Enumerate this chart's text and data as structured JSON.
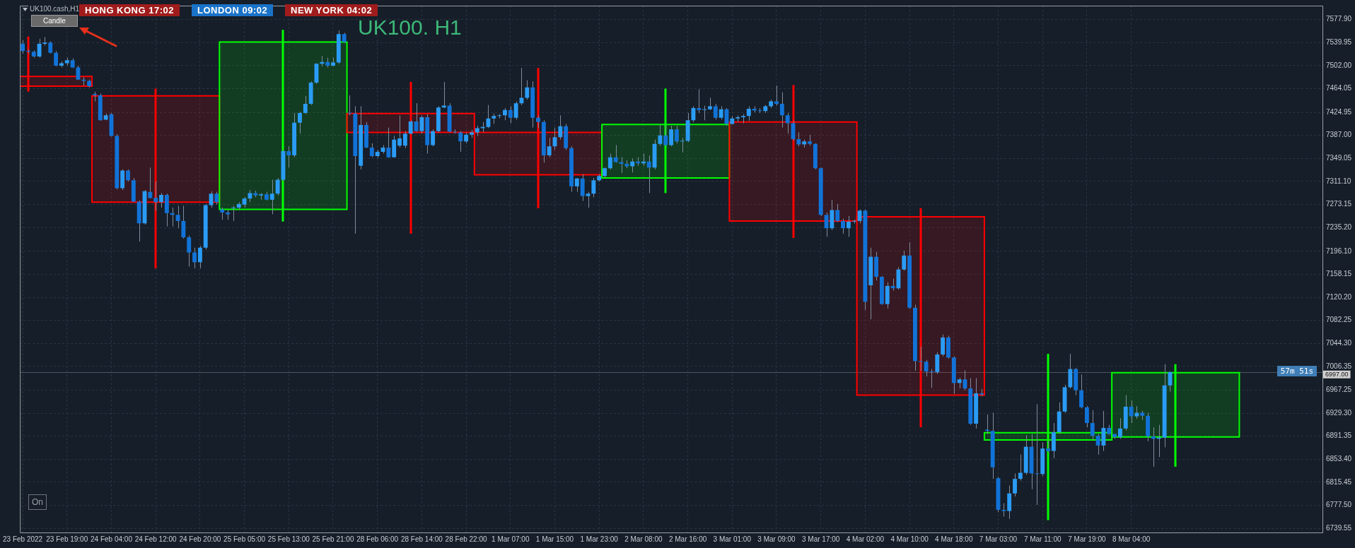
{
  "chart_data": {
    "type": "candlestick",
    "title": "UK100. H1",
    "categories": [
      "23 Feb 2022",
      null,
      null,
      null,
      null,
      null,
      null,
      null,
      "23 Feb 19:00",
      null,
      null,
      null,
      null,
      null,
      null,
      null,
      "24 Feb 04:00",
      null,
      null,
      null,
      null,
      null,
      null,
      null,
      "24 Feb 12:00",
      null,
      null,
      null,
      null,
      null,
      null,
      null,
      "24 Feb 20:00",
      null,
      null,
      null,
      null,
      null,
      null,
      null,
      "25 Feb 05:00",
      null,
      null,
      null,
      null,
      null,
      null,
      null,
      "25 Feb 13:00",
      null,
      null,
      null,
      null,
      null,
      null,
      null,
      "25 Feb 21:00",
      null,
      null,
      null,
      null,
      null,
      null,
      null,
      "28 Feb 06:00",
      null,
      null,
      null,
      null,
      null,
      null,
      null,
      "28 Feb 14:00",
      null,
      null,
      null,
      null,
      null,
      null,
      null,
      "28 Feb 22:00",
      null,
      null,
      null,
      null,
      null,
      null,
      null,
      "1 Mar 07:00",
      null,
      null,
      null,
      null,
      null,
      null,
      null,
      "1 Mar 15:00",
      null,
      null,
      null,
      null,
      null,
      null,
      null,
      "1 Mar 23:00",
      null,
      null,
      null,
      null,
      null,
      null,
      null,
      "2 Mar 08:00",
      null,
      null,
      null,
      null,
      null,
      null,
      null,
      "2 Mar 16:00",
      null,
      null,
      null,
      null,
      null,
      null,
      null,
      "3 Mar 01:00",
      null,
      null,
      null,
      null,
      null,
      null,
      null,
      "3 Mar 09:00",
      null,
      null,
      null,
      null,
      null,
      null,
      null,
      "3 Mar 17:00",
      null,
      null,
      null,
      null,
      null,
      null,
      null,
      "4 Mar 02:00",
      null,
      null,
      null,
      null,
      null,
      null,
      null,
      "4 Mar 10:00",
      null,
      null,
      null,
      null,
      null,
      null,
      null,
      "4 Mar 18:00",
      null,
      null,
      null,
      null,
      null,
      null,
      null,
      "7 Mar 03:00",
      null,
      null,
      null,
      null,
      null,
      null,
      null,
      "7 Mar 11:00",
      null,
      null,
      null,
      null,
      null,
      null,
      null,
      "7 Mar 19:00",
      null,
      null,
      null,
      null,
      null,
      null,
      null,
      "8 Mar 04:00",
      null,
      null,
      null,
      null,
      null,
      null,
      null,
      null,
      null,
      null,
      null,
      null,
      null,
      null,
      null,
      null,
      null,
      null,
      null,
      null,
      null,
      null,
      null,
      null,
      null,
      null,
      null,
      null,
      null,
      null,
      null,
      null,
      null,
      null
    ],
    "series": [
      {
        "color": "#7f8c9c",
        "colors": [
          "#1173d8",
          "#1173d8",
          "#1173d8",
          "#2a9cf5",
          "#2a9cf5",
          "#1173d8",
          "#1173d8",
          "#2a9cf5",
          "#2a9cf5",
          "#1173d8",
          "#1173d8",
          "#1173d8",
          "#1173d8",
          "#1173d8",
          "#1173d8",
          "#2a9cf5",
          "#1173d8",
          "#1173d8",
          "#2a9cf5",
          "#1173d8",
          "#1173d8",
          "#1173d8",
          "#2a9cf5",
          "#1173d8",
          "#1173d8",
          "#2a9cf5",
          "#1173d8",
          "#1173d8",
          "#1173d8",
          "#1173d8",
          "#1173d8",
          "#1173d8",
          "#2a9cf5",
          "#2a9cf5",
          "#2a9cf5",
          "#1173d8",
          "#1173d8",
          "#1173d8",
          "#2a9cf5",
          "#2a9cf5",
          "#2a9cf5",
          "#2a9cf5",
          "#1173d8",
          "#2a9cf5",
          "#1173d8",
          "#2a9cf5",
          "#2a9cf5",
          "#2a9cf5",
          "#1173d8",
          "#2a9cf5",
          "#2a9cf5",
          "#2a9cf5",
          "#2a9cf5",
          "#2a9cf5",
          "#2a9cf5",
          "#1173d8",
          "#2a9cf5",
          "#2a9cf5",
          "#1173d8",
          "#1173d8",
          "#1173d8",
          "#2a9cf5",
          "#1173d8",
          "#1173d8",
          "#2a9cf5",
          "#2a9cf5",
          "#1173d8",
          "#2a9cf5",
          "#2a9cf5",
          "#2a9cf5",
          "#2a9cf5",
          "#1173d8",
          "#2a9cf5",
          "#1173d8",
          "#2a9cf5",
          "#2a9cf5",
          "#2a9cf5",
          "#1173d8",
          "#1173d8",
          "#1173d8",
          "#2a9cf5",
          "#2a9cf5",
          "#2a9cf5",
          "#2a9cf5",
          "#2a9cf5",
          "#2a9cf5",
          "#2a9cf5",
          "#2a9cf5",
          "#1173d8",
          "#2a9cf5",
          "#2a9cf5",
          "#2a9cf5",
          "#1173d8",
          "#1173d8",
          "#1173d8",
          "#2a9cf5",
          "#2a9cf5",
          "#2a9cf5",
          "#1173d8",
          "#1173d8",
          "#2a9cf5",
          "#1173d8",
          "#2a9cf5",
          "#2a9cf5",
          "#2a9cf5",
          "#2a9cf5",
          "#2a9cf5",
          "#1173d8",
          "#1173d8",
          "#1173d8",
          "#2a9cf5",
          "#1173d8",
          "#2a9cf5",
          "#1173d8",
          "#2a9cf5",
          "#2a9cf5",
          "#1173d8",
          "#2a9cf5",
          "#1173d8",
          "#2a9cf5",
          "#2a9cf5",
          "#2a9cf5",
          "#1173d8",
          "#2a9cf5",
          "#2a9cf5",
          "#1173d8",
          "#2a9cf5",
          "#1173d8",
          "#2a9cf5",
          "#2a9cf5",
          "#2a9cf5",
          "#2a9cf5",
          "#1173d8",
          "#1173d8",
          "#2a9cf5",
          "#2a9cf5",
          "#1173d8",
          "#1173d8",
          "#1173d8",
          "#1173d8",
          "#1173d8",
          "#2a9cf5",
          "#1173d8",
          "#1173d8",
          "#1173d8",
          "#1173d8",
          "#2a9cf5",
          "#1173d8",
          "#1173d8",
          "#2a9cf5",
          "#2a9cf5",
          "#2a9cf5",
          "#1173d8",
          "#2a9cf5",
          "#1173d8",
          "#1173d8",
          "#2a9cf5",
          "#1173d8",
          "#2a9cf5",
          "#2a9cf5",
          "#1173d8",
          "#1173d8",
          "#1173d8",
          "#1173d8",
          "#1173d8",
          "#2a9cf5",
          "#2a9cf5",
          "#1173d8",
          "#1173d8",
          "#2a9cf5",
          "#1173d8",
          "#1173d8",
          "#2a9cf5",
          "#1173d8",
          "#1173d8",
          "#1173d8",
          "#1173d8",
          "#1173d8",
          "#2a9cf5",
          "#2a9cf5",
          "#2a9cf5",
          "#2a9cf5",
          "#1173d8",
          "#1173d8",
          "#2a9cf5",
          "#1173d8",
          "#2a9cf5",
          "#2a9cf5",
          "#2a9cf5",
          "#2a9cf5",
          "#1173d8",
          "#1173d8",
          "#1173d8",
          "#1173d8",
          "#1173d8",
          "#2a9cf5",
          "#1173d8",
          "#1173d8",
          "#2a9cf5",
          "#2a9cf5",
          "#1173d8",
          "#2a9cf5",
          "#1173d8",
          "#1173d8",
          "#1173d8",
          "#2a9cf5",
          "#2a9cf5",
          "#2a9cf5",
          null,
          null,
          null,
          null,
          null,
          null,
          null,
          null,
          null,
          null,
          null,
          null,
          null,
          null,
          null,
          null,
          null,
          null,
          null,
          null,
          null,
          null,
          null,
          null,
          null,
          null,
          null
        ],
        "ohlc": [
          [
            7538,
            7544,
            7522,
            7526
          ],
          [
            7526,
            7529,
            7522,
            7525
          ],
          [
            7525,
            7527,
            7515,
            7517
          ],
          [
            7517,
            7546,
            7515,
            7538
          ],
          [
            7538,
            7549,
            7535,
            7540
          ],
          [
            7540,
            7542,
            7522,
            7523
          ],
          [
            7523,
            7526,
            7501,
            7502
          ],
          [
            7502,
            7509,
            7499,
            7506
          ],
          [
            7506,
            7515,
            7502,
            7511
          ],
          [
            7511,
            7514,
            7498,
            7499
          ],
          [
            7499,
            7502,
            7478,
            7479
          ],
          [
            7479,
            7483,
            7469,
            7477
          ],
          [
            7477,
            7479,
            7466,
            7468
          ],
          [
            7455,
            7459,
            7443,
            7453
          ],
          [
            7453,
            7456,
            7411,
            7412
          ],
          [
            7413,
            7423,
            7412,
            7420
          ],
          [
            7422,
            7424,
            7385,
            7386
          ],
          [
            7386,
            7389,
            7298,
            7300
          ],
          [
            7300,
            7331,
            7297,
            7329
          ],
          [
            7329,
            7331,
            7311,
            7313
          ],
          [
            7313,
            7317,
            7277,
            7278
          ],
          [
            7278,
            7280,
            7212,
            7242
          ],
          [
            7242,
            7297,
            7240,
            7295
          ],
          [
            7294,
            7334,
            7283,
            7284
          ],
          [
            7284,
            7311,
            7263,
            7277
          ],
          [
            7277,
            7292,
            7268,
            7289
          ],
          [
            7289,
            7291,
            7237,
            7259
          ],
          [
            7259,
            7268,
            7237,
            7256
          ],
          [
            7256,
            7271,
            7234,
            7246
          ],
          [
            7246,
            7271,
            7217,
            7219
          ],
          [
            7219,
            7222,
            7171,
            7194
          ],
          [
            7194,
            7202,
            7168,
            7178
          ],
          [
            7178,
            7205,
            7168,
            7202
          ],
          [
            7202,
            7274,
            7199,
            7272
          ],
          [
            7272,
            7295,
            7268,
            7291
          ],
          [
            7291,
            7294,
            7273,
            7277
          ],
          [
            7265,
            7268,
            7248,
            7260
          ],
          [
            7260,
            7264,
            7248,
            7257
          ],
          [
            7267,
            7271,
            7246,
            7268
          ],
          [
            7268,
            7277,
            7265,
            7274
          ],
          [
            7273,
            7285,
            7268,
            7283
          ],
          [
            7283,
            7297,
            7277,
            7292
          ],
          [
            7292,
            7296,
            7285,
            7288
          ],
          [
            7288,
            7292,
            7281,
            7290
          ],
          [
            7290,
            7294,
            7280,
            7281
          ],
          [
            7281,
            7314,
            7257,
            7291
          ],
          [
            7291,
            7317,
            7288,
            7314
          ],
          [
            7314,
            7363,
            7311,
            7361
          ],
          [
            7361,
            7369,
            7334,
            7354
          ],
          [
            7354,
            7424,
            7351,
            7408
          ],
          [
            7408,
            7426,
            7390,
            7424
          ],
          [
            7424,
            7452,
            7422,
            7439
          ],
          [
            7439,
            7476,
            7437,
            7474
          ],
          [
            7474,
            7506,
            7472,
            7505
          ],
          [
            7505,
            7518,
            7501,
            7508
          ],
          [
            7508,
            7515,
            7499,
            7502
          ],
          [
            7502,
            7515,
            7501,
            7507
          ],
          [
            7507,
            7560,
            7505,
            7554
          ],
          [
            7554,
            7556,
            7539,
            7541
          ],
          [
            7424,
            7453,
            7420,
            7423
          ],
          [
            7423,
            7435,
            7225,
            7353
          ],
          [
            7337,
            7435,
            7331,
            7404
          ],
          [
            7404,
            7409,
            7366,
            7367
          ],
          [
            7367,
            7374,
            7351,
            7353
          ],
          [
            7353,
            7363,
            7350,
            7360
          ],
          [
            7360,
            7371,
            7357,
            7367
          ],
          [
            7367,
            7400,
            7350,
            7351
          ],
          [
            7351,
            7386,
            7351,
            7380
          ],
          [
            7370,
            7420,
            7367,
            7382
          ],
          [
            7370,
            7394,
            7366,
            7390
          ],
          [
            7390,
            7412,
            7389,
            7410
          ],
          [
            7410,
            7440,
            7393,
            7394
          ],
          [
            7394,
            7420,
            7390,
            7417
          ],
          [
            7417,
            7422,
            7357,
            7371
          ],
          [
            7371,
            7397,
            7369,
            7394
          ],
          [
            7394,
            7435,
            7392,
            7433
          ],
          [
            7433,
            7475,
            7432,
            7436
          ],
          [
            7436,
            7440,
            7392,
            7393
          ],
          [
            7393,
            7397,
            7390,
            7392
          ],
          [
            7392,
            7394,
            7360,
            7377
          ],
          [
            7377,
            7392,
            7374,
            7388
          ],
          [
            7388,
            7396,
            7383,
            7392
          ],
          [
            7392,
            7403,
            7386,
            7399
          ],
          [
            7399,
            7409,
            7392,
            7401
          ],
          [
            7401,
            7437,
            7399,
            7415
          ],
          [
            7415,
            7423,
            7406,
            7419
          ],
          [
            7419,
            7422,
            7415,
            7420
          ],
          [
            7420,
            7432,
            7412,
            7429
          ],
          [
            7429,
            7435,
            7407,
            7416
          ],
          [
            7416,
            7443,
            7413,
            7440
          ],
          [
            7440,
            7498,
            7437,
            7449
          ],
          [
            7449,
            7478,
            7446,
            7466
          ],
          [
            7466,
            7476,
            7400,
            7416
          ],
          [
            7416,
            7420,
            7399,
            7409
          ],
          [
            7409,
            7412,
            7342,
            7354
          ],
          [
            7354,
            7383,
            7351,
            7369
          ],
          [
            7369,
            7400,
            7363,
            7384
          ],
          [
            7384,
            7420,
            7380,
            7402
          ],
          [
            7402,
            7406,
            7363,
            7366
          ],
          [
            7366,
            7369,
            7294,
            7303
          ],
          [
            7303,
            7317,
            7294,
            7316
          ],
          [
            7316,
            7323,
            7279,
            7287
          ],
          [
            7287,
            7294,
            7268,
            7291
          ],
          [
            7291,
            7317,
            7285,
            7313
          ],
          [
            7313,
            7323,
            7311,
            7320
          ],
          [
            7320,
            7334,
            7317,
            7333
          ],
          [
            7333,
            7357,
            7331,
            7351
          ],
          [
            7351,
            7371,
            7342,
            7343
          ],
          [
            7343,
            7351,
            7325,
            7340
          ],
          [
            7340,
            7346,
            7333,
            7336
          ],
          [
            7336,
            7349,
            7326,
            7344
          ],
          [
            7344,
            7351,
            7337,
            7341
          ],
          [
            7341,
            7357,
            7337,
            7344
          ],
          [
            7344,
            7354,
            7292,
            7334
          ],
          [
            7334,
            7380,
            7331,
            7373
          ],
          [
            7373,
            7405,
            7370,
            7387
          ],
          [
            7387,
            7403,
            7369,
            7371
          ],
          [
            7371,
            7403,
            7369,
            7397
          ],
          [
            7397,
            7403,
            7374,
            7377
          ],
          [
            7377,
            7383,
            7359,
            7378
          ],
          [
            7378,
            7424,
            7376,
            7412
          ],
          [
            7412,
            7435,
            7409,
            7432
          ],
          [
            7432,
            7463,
            7424,
            7429
          ],
          [
            7429,
            7436,
            7412,
            7430
          ],
          [
            7430,
            7449,
            7429,
            7435
          ],
          [
            7435,
            7439,
            7413,
            7416
          ],
          [
            7416,
            7435,
            7413,
            7430
          ],
          [
            7430,
            7432,
            7403,
            7406
          ],
          [
            7406,
            7419,
            7405,
            7415
          ],
          [
            7415,
            7420,
            7409,
            7417
          ],
          [
            7417,
            7422,
            7407,
            7419
          ],
          [
            7419,
            7435,
            7411,
            7431
          ],
          [
            7431,
            7435,
            7425,
            7428
          ],
          [
            7428,
            7432,
            7424,
            7427
          ],
          [
            7427,
            7437,
            7424,
            7435
          ],
          [
            7435,
            7446,
            7432,
            7443
          ],
          [
            7443,
            7469,
            7436,
            7439
          ],
          [
            7439,
            7458,
            7400,
            7420
          ],
          [
            7420,
            7424,
            7390,
            7407
          ],
          [
            7407,
            7411,
            7378,
            7381
          ],
          [
            7381,
            7392,
            7369,
            7372
          ],
          [
            7372,
            7380,
            7367,
            7377
          ],
          [
            7377,
            7388,
            7370,
            7373
          ],
          [
            7373,
            7374,
            7331,
            7333
          ],
          [
            7333,
            7334,
            7254,
            7256
          ],
          [
            7256,
            7260,
            7220,
            7234
          ],
          [
            7234,
            7281,
            7231,
            7264
          ],
          [
            7264,
            7274,
            7244,
            7246
          ],
          [
            7246,
            7250,
            7225,
            7234
          ],
          [
            7234,
            7254,
            7220,
            7245
          ],
          [
            7245,
            7248,
            7242,
            7246
          ],
          [
            7246,
            7265,
            7242,
            7263
          ],
          [
            7263,
            7265,
            7099,
            7113
          ],
          [
            7140,
            7202,
            7084,
            7187
          ],
          [
            7187,
            7195,
            7148,
            7154
          ],
          [
            7154,
            7155,
            7108,
            7109
          ],
          [
            7109,
            7145,
            7102,
            7139
          ],
          [
            7139,
            7151,
            7131,
            7135
          ],
          [
            7135,
            7170,
            7133,
            7166
          ],
          [
            7166,
            7197,
            7164,
            7189
          ],
          [
            7189,
            7211,
            7101,
            7103
          ],
          [
            7103,
            7108,
            6999,
            7015
          ],
          [
            7015,
            7039,
            6999,
            7014
          ],
          [
            7014,
            7017,
            6990,
            6998
          ],
          [
            6998,
            7002,
            6971,
            6997
          ],
          [
            6997,
            7030,
            6994,
            7026
          ],
          [
            7026,
            7059,
            7023,
            7054
          ],
          [
            7054,
            7057,
            7019,
            7021
          ],
          [
            7021,
            7023,
            6961,
            6979
          ],
          [
            6979,
            6988,
            6970,
            6985
          ],
          [
            6985,
            7000,
            6967,
            6970
          ],
          [
            6970,
            6987,
            6910,
            6912
          ],
          [
            6912,
            6987,
            6904,
            6962
          ],
          [
            6962,
            6969,
            6957,
            6960
          ],
          [
            6902,
            6927,
            6895,
            6900
          ],
          [
            6900,
            6930,
            6821,
            6840
          ],
          [
            6822,
            6824,
            6766,
            6770
          ],
          [
            6770,
            6781,
            6759,
            6768
          ],
          [
            6768,
            6810,
            6755,
            6797
          ],
          [
            6797,
            6830,
            6792,
            6821
          ],
          [
            6821,
            6861,
            6818,
            6831
          ],
          [
            6831,
            6893,
            6828,
            6874
          ],
          [
            6874,
            6895,
            6804,
            6830
          ],
          [
            6830,
            6944,
            6778,
            6829
          ],
          [
            6829,
            6881,
            6826,
            6871
          ],
          [
            6871,
            6884,
            6864,
            6867
          ],
          [
            6867,
            6913,
            6855,
            6898
          ],
          [
            6898,
            6947,
            6895,
            6932
          ],
          [
            6932,
            6976,
            6930,
            6972
          ],
          [
            6972,
            7027,
            6970,
            7002
          ],
          [
            7002,
            7004,
            6959,
            6967
          ],
          [
            6967,
            6993,
            6937,
            6939
          ],
          [
            6939,
            6941,
            6906,
            6913
          ],
          [
            6913,
            6934,
            6885,
            6892
          ],
          [
            6892,
            6895,
            6861,
            6876
          ],
          [
            6876,
            6933,
            6867,
            6905
          ],
          [
            6905,
            6910,
            6893,
            6895
          ],
          [
            6895,
            6895,
            6887,
            6890
          ],
          [
            6890,
            6921,
            6887,
            6904
          ],
          [
            6904,
            6959,
            6901,
            6940
          ],
          [
            6940,
            6950,
            6913,
            6924
          ],
          [
            6924,
            6941,
            6920,
            6930
          ],
          [
            6930,
            6933,
            6918,
            6925
          ],
          [
            6925,
            6930,
            6883,
            6891
          ],
          [
            6891,
            6906,
            6841,
            6887
          ],
          [
            6887,
            6910,
            6857,
            6889
          ],
          [
            6889,
            7010,
            6873,
            6975
          ],
          [
            6975,
            6998,
            6965,
            6997
          ],
          null,
          null,
          null,
          null,
          null,
          null,
          null,
          null,
          null,
          null,
          null,
          null,
          null,
          null,
          null,
          null,
          null,
          null,
          null,
          null,
          null,
          null,
          null,
          null,
          null,
          null,
          null
        ]
      },
      {
        "colors": [
          null,
          "#ff0000",
          null,
          null,
          null,
          null,
          null,
          null,
          null,
          null,
          null,
          null,
          null,
          null,
          null,
          null,
          null,
          null,
          null,
          null,
          null,
          null,
          null,
          null,
          "#ff0000",
          null,
          null,
          null,
          null,
          null,
          null,
          null,
          null,
          null,
          null,
          null,
          null,
          null,
          null,
          null,
          null,
          null,
          null,
          null,
          null,
          null,
          null,
          "#00ff00",
          null,
          null,
          null,
          null,
          null,
          null,
          null,
          null,
          null,
          null,
          null,
          null,
          null,
          null,
          null,
          null,
          null,
          null,
          null,
          null,
          null,
          null,
          "#ff0000",
          null,
          null,
          null,
          null,
          null,
          null,
          null,
          null,
          null,
          null,
          null,
          null,
          null,
          null,
          null,
          null,
          null,
          null,
          null,
          null,
          null,
          null,
          "#ff0000",
          null,
          null,
          null,
          null,
          null,
          null,
          null,
          null,
          null,
          null,
          null,
          null,
          null,
          null,
          null,
          null,
          null,
          null,
          null,
          null,
          null,
          null,
          "#00ff00",
          null,
          null,
          null,
          null,
          null,
          null,
          null,
          null,
          null,
          null,
          null,
          null,
          null,
          null,
          null,
          null,
          null,
          null,
          null,
          null,
          null,
          null,
          "#ff0000",
          null,
          null,
          null,
          null,
          null,
          null,
          null,
          null,
          null,
          null,
          null,
          null,
          null,
          null,
          null,
          null,
          null,
          null,
          null,
          null,
          null,
          null,
          "#ff0000",
          null,
          null,
          null,
          null,
          null,
          null,
          null,
          null,
          null,
          null,
          null,
          null,
          null,
          null,
          null,
          null,
          null,
          null,
          null,
          null,
          null,
          null,
          "#00ff00",
          null,
          null,
          null,
          null,
          null,
          null,
          null,
          null,
          null,
          null,
          null,
          null,
          null,
          null,
          null,
          null,
          null,
          null,
          null,
          null,
          null,
          null,
          "#00ff00",
          null,
          null,
          null,
          null,
          null,
          null,
          null,
          null,
          null,
          null,
          null,
          null,
          null,
          null,
          null,
          null,
          null,
          null,
          null,
          null,
          null,
          null,
          null,
          null,
          null,
          null
        ],
        "ohlc": [
          null,
          [
            7484,
            7550,
            7459,
            7468
          ],
          null,
          null,
          null,
          null,
          null,
          null,
          null,
          null,
          null,
          null,
          null,
          null,
          null,
          null,
          null,
          null,
          null,
          null,
          null,
          null,
          null,
          null,
          [
            7452,
            7464,
            7168,
            7277
          ],
          null,
          null,
          null,
          null,
          null,
          null,
          null,
          null,
          null,
          null,
          null,
          null,
          null,
          null,
          null,
          null,
          null,
          null,
          null,
          null,
          null,
          null,
          [
            7265,
            7561,
            7245,
            7541
          ],
          null,
          null,
          null,
          null,
          null,
          null,
          null,
          null,
          null,
          null,
          null,
          null,
          null,
          null,
          null,
          null,
          null,
          null,
          null,
          null,
          null,
          null,
          [
            7423,
            7475,
            7225,
            7392
          ],
          null,
          null,
          null,
          null,
          null,
          null,
          null,
          null,
          null,
          null,
          null,
          null,
          null,
          null,
          null,
          null,
          null,
          null,
          null,
          null,
          null,
          null,
          [
            7392,
            7498,
            7267,
            7322
          ],
          null,
          null,
          null,
          null,
          null,
          null,
          null,
          null,
          null,
          null,
          null,
          null,
          null,
          null,
          null,
          null,
          null,
          null,
          null,
          null,
          null,
          null,
          [
            7317,
            7464,
            7292,
            7405
          ],
          null,
          null,
          null,
          null,
          null,
          null,
          null,
          null,
          null,
          null,
          null,
          null,
          null,
          null,
          null,
          null,
          null,
          null,
          null,
          null,
          null,
          null,
          [
            7409,
            7470,
            7218,
            7246
          ],
          null,
          null,
          null,
          null,
          null,
          null,
          null,
          null,
          null,
          null,
          null,
          null,
          null,
          null,
          null,
          null,
          null,
          null,
          null,
          null,
          null,
          null,
          [
            7253,
            7267,
            6906,
            6959
          ],
          null,
          null,
          null,
          null,
          null,
          null,
          null,
          null,
          null,
          null,
          null,
          null,
          null,
          null,
          null,
          null,
          null,
          null,
          null,
          null,
          null,
          null,
          [
            6885,
            7027,
            6753,
            6897
          ],
          null,
          null,
          null,
          null,
          null,
          null,
          null,
          null,
          null,
          null,
          null,
          null,
          null,
          null,
          null,
          null,
          null,
          null,
          null,
          null,
          null,
          null,
          [
            6890,
            7010,
            6841,
            6996
          ],
          null,
          null,
          null,
          null,
          null,
          null,
          null,
          null,
          null,
          null,
          null,
          null,
          null,
          null,
          null,
          null,
          null,
          null,
          null,
          null,
          null,
          null,
          null,
          null,
          null,
          null
        ]
      }
    ],
    "ylim": [
      6732.7,
      7600.8
    ],
    "yticks": [
      {
        "value": 7577.9,
        "label": "7577.90"
      },
      {
        "value": 7539.95,
        "label": "7539.95"
      },
      {
        "value": 7502,
        "label": "7502.00"
      },
      {
        "value": 7464.05,
        "label": "7464.05"
      },
      {
        "value": 7424.95,
        "label": "7424.95"
      },
      {
        "value": 7387,
        "label": "7387.00"
      },
      {
        "value": 7349.05,
        "label": "7349.05"
      },
      {
        "value": 7311.1,
        "label": "7311.10"
      },
      {
        "value": 7273.15,
        "label": "7273.15"
      },
      {
        "value": 7235.2,
        "label": "7235.20"
      },
      {
        "value": 7196.1,
        "label": "7196.10"
      },
      {
        "value": 7158.15,
        "label": "7158.15"
      },
      {
        "value": 7120.2,
        "label": "7120.20"
      },
      {
        "value": 7082.25,
        "label": "7082.25"
      },
      {
        "value": 7044.3,
        "label": "7044.30"
      },
      {
        "value": 7006.35,
        "label": "7006.35"
      },
      {
        "value": 6967.25,
        "label": "6967.25"
      },
      {
        "value": 6929.3,
        "label": "6929.30"
      },
      {
        "value": 6891.35,
        "label": "6891.35"
      },
      {
        "value": 6853.4,
        "label": "6853.40"
      },
      {
        "value": 6815.45,
        "label": "6815.45"
      },
      {
        "value": 6777.5,
        "label": "6777.50"
      },
      {
        "value": 6739.55,
        "label": "6739.55"
      }
    ],
    "grid": true,
    "ref_lines": [
      {
        "axis": "y",
        "value": 6997,
        "label": "6997.00",
        "color": "#4a5563"
      }
    ],
    "annotations": [
      "UK100.cash,H1",
      "Candle",
      "HONG KONG  17:02",
      "LONDON  09:02",
      "NEW YORK  04:02",
      "On",
      "57m 51s"
    ]
  }
}
